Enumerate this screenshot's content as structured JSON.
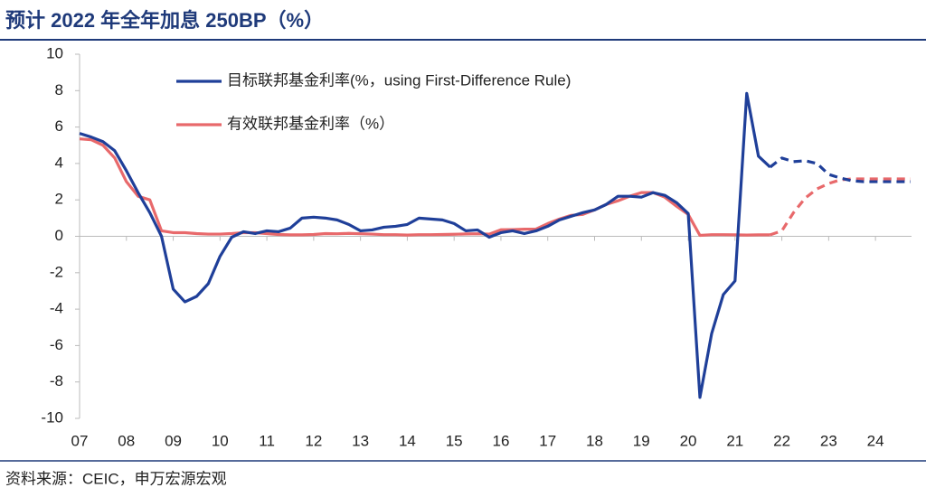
{
  "chart_data": {
    "type": "line",
    "title": "预计 2022 年全年加息 250BP（%）",
    "source": "资料来源：CEIC，申万宏源宏观",
    "legend": "upper left",
    "x": [
      2007,
      2007.25,
      2007.5,
      2007.75,
      2008,
      2008.25,
      2008.5,
      2008.75,
      2009,
      2009.25,
      2009.5,
      2009.75,
      2010,
      2010.25,
      2010.5,
      2010.75,
      2011,
      2011.25,
      2011.5,
      2011.75,
      2012,
      2012.25,
      2012.5,
      2012.75,
      2013,
      2013.25,
      2013.5,
      2013.75,
      2014,
      2014.25,
      2014.5,
      2014.75,
      2015,
      2015.25,
      2015.5,
      2015.75,
      2016,
      2016.25,
      2016.5,
      2016.75,
      2017,
      2017.25,
      2017.5,
      2017.75,
      2018,
      2018.25,
      2018.5,
      2018.75,
      2019,
      2019.25,
      2019.5,
      2019.75,
      2020,
      2020.25,
      2020.5,
      2020.75,
      2021,
      2021.25,
      2021.5,
      2021.75,
      2022,
      2022.25,
      2022.5,
      2022.75,
      2023,
      2023.25,
      2023.5,
      2023.75,
      2024,
      2024.25,
      2024.5,
      2024.75
    ],
    "xlim": [
      2007,
      2024.77
    ],
    "xticks": [
      {
        "value": 2007,
        "label": "07"
      },
      {
        "value": 2008,
        "label": "08"
      },
      {
        "value": 2009,
        "label": "09"
      },
      {
        "value": 2010,
        "label": "10"
      },
      {
        "value": 2011,
        "label": "11"
      },
      {
        "value": 2012,
        "label": "12"
      },
      {
        "value": 2013,
        "label": "13"
      },
      {
        "value": 2014,
        "label": "14"
      },
      {
        "value": 2015,
        "label": "15"
      },
      {
        "value": 2016,
        "label": "16"
      },
      {
        "value": 2017,
        "label": "17"
      },
      {
        "value": 2018,
        "label": "18"
      },
      {
        "value": 2019,
        "label": "19"
      },
      {
        "value": 2020,
        "label": "20"
      },
      {
        "value": 2021,
        "label": "21"
      },
      {
        "value": 2022,
        "label": "22"
      },
      {
        "value": 2023,
        "label": "23"
      },
      {
        "value": 2024,
        "label": "24"
      }
    ],
    "ylim": [
      -10,
      10
    ],
    "yticks": [
      -10,
      -8,
      -6,
      -4,
      -2,
      0,
      2,
      4,
      6,
      8,
      10
    ],
    "series": [
      {
        "name": "目标联邦基金利率(%，using First-Difference Rule)",
        "color": "#1f3f99",
        "values": [
          5.65,
          5.45,
          5.2,
          4.7,
          3.6,
          2.4,
          1.3,
          0,
          -2.9,
          -3.6,
          -3.3,
          -2.6,
          -1.1,
          -0.05,
          0.25,
          0.15,
          0.3,
          0.25,
          0.45,
          1.0,
          1.05,
          1.0,
          0.9,
          0.65,
          0.3,
          0.35,
          0.5,
          0.55,
          0.65,
          1.0,
          0.95,
          0.9,
          0.7,
          0.3,
          0.35,
          -0.05,
          0.2,
          0.3,
          0.15,
          0.3,
          0.55,
          0.9,
          1.1,
          1.3,
          1.45,
          1.75,
          2.2,
          2.2,
          2.15,
          2.4,
          2.25,
          1.85,
          1.25,
          -8.85,
          -5.35,
          -3.2,
          -2.45,
          7.85,
          4.4,
          3.8,
          null,
          null,
          null,
          null,
          null,
          null,
          null,
          null,
          null,
          null,
          null,
          null
        ],
        "forecast": [
          null,
          null,
          null,
          null,
          null,
          null,
          null,
          null,
          null,
          null,
          null,
          null,
          null,
          null,
          null,
          null,
          null,
          null,
          null,
          null,
          null,
          null,
          null,
          null,
          null,
          null,
          null,
          null,
          null,
          null,
          null,
          null,
          null,
          null,
          null,
          null,
          null,
          null,
          null,
          null,
          null,
          null,
          null,
          null,
          null,
          null,
          null,
          null,
          null,
          null,
          null,
          null,
          null,
          null,
          null,
          null,
          null,
          null,
          null,
          3.8,
          4.3,
          4.1,
          4.15,
          4.0,
          3.4,
          3.2,
          3.05,
          3.0,
          3.0,
          3.0,
          3.0,
          3.0
        ]
      },
      {
        "name": "有效联邦基金利率（%）",
        "color": "#e8696b",
        "values": [
          5.35,
          5.3,
          5.0,
          4.3,
          3.0,
          2.2,
          2.0,
          0.3,
          0.2,
          0.2,
          0.15,
          0.12,
          0.12,
          0.15,
          0.2,
          0.2,
          0.15,
          0.1,
          0.08,
          0.08,
          0.1,
          0.15,
          0.14,
          0.16,
          0.14,
          0.12,
          0.09,
          0.09,
          0.07,
          0.09,
          0.09,
          0.1,
          0.11,
          0.13,
          0.14,
          0.12,
          0.36,
          0.37,
          0.39,
          0.4,
          0.7,
          0.95,
          1.15,
          1.2,
          1.45,
          1.75,
          1.95,
          2.2,
          2.4,
          2.4,
          2.15,
          1.65,
          1.2,
          0.05,
          0.09,
          0.09,
          0.08,
          0.07,
          0.08,
          0.08,
          null,
          null,
          null,
          null,
          null,
          null,
          null,
          null,
          null,
          null,
          null,
          null
        ],
        "forecast": [
          null,
          null,
          null,
          null,
          null,
          null,
          null,
          null,
          null,
          null,
          null,
          null,
          null,
          null,
          null,
          null,
          null,
          null,
          null,
          null,
          null,
          null,
          null,
          null,
          null,
          null,
          null,
          null,
          null,
          null,
          null,
          null,
          null,
          null,
          null,
          null,
          null,
          null,
          null,
          null,
          null,
          null,
          null,
          null,
          null,
          null,
          null,
          null,
          null,
          null,
          null,
          null,
          null,
          null,
          null,
          null,
          null,
          null,
          null,
          0.08,
          0.3,
          1.3,
          2.1,
          2.6,
          2.9,
          3.1,
          3.15,
          3.15,
          3.15,
          3.15,
          3.15,
          3.15
        ]
      }
    ]
  }
}
